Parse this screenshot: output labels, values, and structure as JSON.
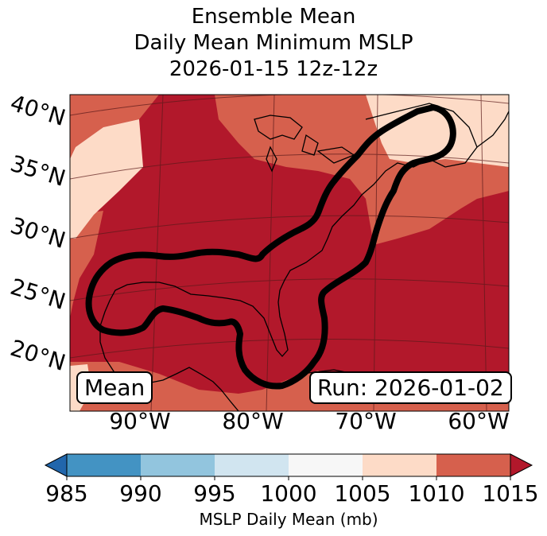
{
  "title": {
    "line1": "Ensemble Mean",
    "line2": "Daily Mean Minimum MSLP",
    "line3": "2026-01-15 12z-12z"
  },
  "map": {
    "latitude_labels": [
      "40°N",
      "35°N",
      "30°N",
      "25°N",
      "20°N"
    ],
    "longitude_labels": [
      "90°W",
      "80°W",
      "70°W",
      "60°W"
    ],
    "mean_box": "Mean",
    "run_box": "Run: 2026-01-02",
    "fill_colors": {
      "c1005_1010": "#fddbc7",
      "c1010_1015": "#d6604d",
      "c1015_plus": "#b2182b"
    },
    "contour_color": "#000000"
  },
  "colorbar": {
    "label": "MSLP Daily Mean (mb)",
    "ticks": [
      "985",
      "990",
      "995",
      "1000",
      "1005",
      "1010",
      "1015"
    ],
    "bins": [
      {
        "low": 985,
        "high": 990,
        "color": "#4393c3"
      },
      {
        "low": 990,
        "high": 995,
        "color": "#92c5de"
      },
      {
        "low": 995,
        "high": 1000,
        "color": "#d1e5f0"
      },
      {
        "low": 1000,
        "high": 1005,
        "color": "#f7f7f7"
      },
      {
        "low": 1005,
        "high": 1010,
        "color": "#fddbc7"
      },
      {
        "low": 1010,
        "high": 1015,
        "color": "#d6604d"
      }
    ],
    "under_color": "#2166ac",
    "over_color": "#b2182b"
  }
}
